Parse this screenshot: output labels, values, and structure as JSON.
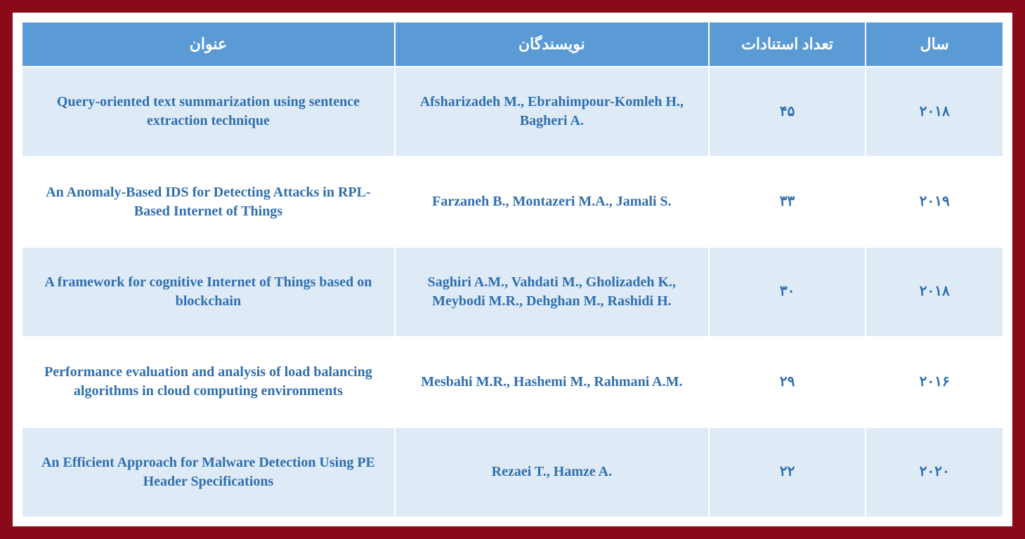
{
  "table": {
    "header_bg": "#5b9bd5",
    "header_fg": "#ffffff",
    "row_odd_bg": "#deebf7",
    "row_even_bg": "#ffffff",
    "cell_fg": "#2f6eaf",
    "border_color": "#ffffff",
    "frame_bg": "#8b0a1a",
    "columns": [
      {
        "key": "title",
        "label": "عنوان"
      },
      {
        "key": "authors",
        "label": "نویسندگان"
      },
      {
        "key": "citations",
        "label": "تعداد استنادات"
      },
      {
        "key": "year",
        "label": "سال"
      }
    ],
    "rows": [
      {
        "title": "Query-oriented text summarization using sentence extraction technique",
        "authors": "Afsharizadeh M., Ebrahimpour-Komleh H., Bagheri A.",
        "citations": "۴۵",
        "year": "۲۰۱۸"
      },
      {
        "title": "An Anomaly-Based IDS for Detecting Attacks in RPL-Based Internet of Things",
        "authors": "Farzaneh B., Montazeri M.A., Jamali S.",
        "citations": "۳۳",
        "year": "۲۰۱۹"
      },
      {
        "title": "A framework for cognitive Internet of Things based on blockchain",
        "authors": "Saghiri A.M., Vahdati M., Gholizadeh K., Meybodi M.R., Dehghan M., Rashidi H.",
        "citations": "۳۰",
        "year": "۲۰۱۸"
      },
      {
        "title": "Performance evaluation and analysis of load balancing algorithms in cloud computing environments",
        "authors": "Mesbahi M.R., Hashemi M., Rahmani A.M.",
        "citations": "۲۹",
        "year": "۲۰۱۶"
      },
      {
        "title": "An Efficient Approach for Malware Detection Using PE Header Specifications",
        "authors": "Rezaei T., Hamze A.",
        "citations": "۲۲",
        "year": "۲۰۲۰"
      }
    ]
  }
}
